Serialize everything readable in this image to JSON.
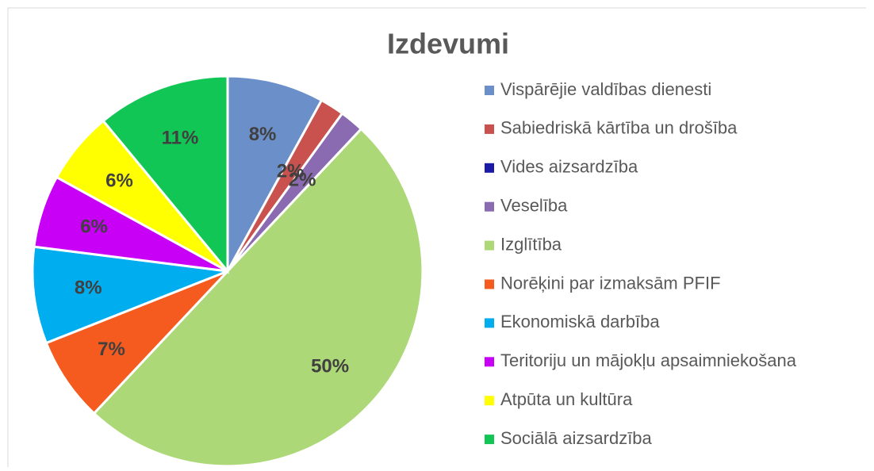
{
  "chart_data": {
    "type": "pie",
    "title": "Izdevumi",
    "categories": [
      "Vispārējie valdības dienesti",
      "Sabiedriskā kārtība un drošība",
      "Vides aizsardzība",
      "Veselība",
      "Izglītība",
      "Norēķini par izmaksām PFIF",
      "Ekonomiskā darbība",
      "Teritoriju un mājokļu apsaimniekošana",
      "Atpūta un kultūra",
      "Sociālā aizsardzība"
    ],
    "values": [
      8,
      2,
      0,
      2,
      50,
      7,
      8,
      6,
      6,
      11
    ],
    "value_labels": [
      "8%",
      "2%",
      null,
      "2%",
      "50%",
      "7%",
      "8%",
      "6%",
      "6%",
      "11%"
    ],
    "colors": [
      "#6a8fc9",
      "#c9524f",
      "#1a1aa6",
      "#8a6ab0",
      "#acd877",
      "#f55b1e",
      "#00aeef",
      "#c800f5",
      "#ffff00",
      "#12c655"
    ],
    "legend": "right"
  }
}
